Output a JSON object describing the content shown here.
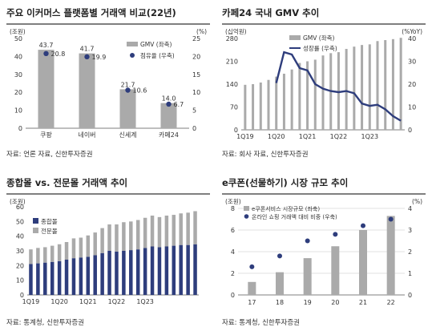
{
  "panels": [
    {
      "title": "주요 이커머스 플랫폼별 거래액 비교(22년)",
      "source": "자료: 언론 자료, 신한투자증권"
    },
    {
      "title": "카페24 국내 GMV 추이",
      "source": "자료: 회사 자료, 신한투자증권"
    },
    {
      "title": "종합몰 vs. 전문몰 거래액 추이",
      "source": "자료: 통계청, 신한투자증권"
    },
    {
      "title": "e쿠폰(선물하기) 시장 규모 추이",
      "source": "자료: 통계청, 신한투자증권"
    }
  ],
  "colors": {
    "bar_gray": "#aaaaaa",
    "navy": "#2e3d7c",
    "grid": "#d9d9d9"
  },
  "chart_data": [
    {
      "type": "bar",
      "categories": [
        "쿠팡",
        "네이버",
        "신세계",
        "카페24"
      ],
      "series": [
        {
          "name": "GMV (좌축)",
          "axis": "left",
          "values": [
            43.7,
            41.7,
            21.7,
            14.0
          ],
          "labels": [
            "43.7",
            "41.7",
            "21.7",
            "14.0"
          ]
        },
        {
          "name": "점유율 (우축)",
          "axis": "right",
          "values": [
            20.8,
            19.9,
            10.6,
            6.7
          ],
          "labels": [
            "20.8",
            "19.9",
            "10.6",
            "6.7"
          ]
        }
      ],
      "left_unit": "(조원)",
      "right_unit": "(%)",
      "ylim": [
        0,
        50
      ],
      "y2lim": [
        0,
        25
      ],
      "yticks": [
        0,
        10,
        20,
        30,
        40,
        50
      ],
      "y2ticks": [
        0,
        5,
        10,
        15,
        20,
        25
      ],
      "grid": false,
      "legend": "top-right"
    },
    {
      "type": "bar",
      "x_labels": [
        "1Q19",
        "1Q20",
        "1Q21",
        "1Q22",
        "1Q23"
      ],
      "series": [
        {
          "name": "GMV (좌축)",
          "axis": "left",
          "values": [
            138,
            140,
            145,
            153,
            163,
            172,
            185,
            205,
            210,
            215,
            228,
            235,
            238,
            248,
            255,
            260,
            262,
            272,
            275,
            278,
            282
          ]
        },
        {
          "name": "성장률 (우축)",
          "axis": "right",
          "values": [
            null,
            null,
            null,
            null,
            20.5,
            34,
            33,
            27,
            26,
            20,
            18,
            17,
            16.5,
            17,
            16,
            11.5,
            10.5,
            11,
            9,
            6,
            4
          ]
        }
      ],
      "left_unit": "(십억원)",
      "right_unit": "(%YoY)",
      "ylim": [
        0,
        280
      ],
      "y2lim": [
        0,
        40
      ],
      "yticks": [
        0,
        70,
        140,
        210,
        280
      ],
      "y2ticks": [
        0,
        10,
        20,
        30,
        40
      ],
      "grid": false,
      "legend": "top-center"
    },
    {
      "type": "bar",
      "x_labels": [
        "1Q19",
        "1Q20",
        "1Q21",
        "1Q22",
        "1Q23"
      ],
      "series": [
        {
          "name": "종합몰",
          "values": [
            21,
            21.5,
            22,
            22.5,
            23,
            24,
            25,
            25.5,
            26,
            27,
            28.5,
            30,
            29.5,
            30,
            30.5,
            31,
            32,
            33,
            32.5,
            33,
            33.5,
            34,
            34,
            34.5
          ]
        },
        {
          "name": "전문몰",
          "values": [
            10,
            10.5,
            10.5,
            11,
            11.5,
            12,
            13.5,
            13.5,
            14.5,
            15.5,
            17,
            18,
            18.5,
            19.5,
            19.5,
            20,
            20.5,
            21,
            20.5,
            21,
            21,
            21.5,
            22,
            22.5
          ]
        }
      ],
      "unit": "(조원)",
      "ylim": [
        0,
        60
      ],
      "yticks": [
        0,
        10,
        20,
        30,
        40,
        50,
        60
      ],
      "stacked": true,
      "grid": false,
      "legend": "top-left"
    },
    {
      "type": "bar",
      "categories": [
        "17",
        "18",
        "19",
        "20",
        "21",
        "22"
      ],
      "series": [
        {
          "name": "e쿠폰서비스 시장규모 (좌축)",
          "axis": "left",
          "values": [
            1.2,
            2.1,
            3.4,
            4.5,
            6.0,
            7.3
          ]
        },
        {
          "name": "온라인 쇼핑 거래액 대비 비중 (우축)",
          "axis": "right",
          "values": [
            1.3,
            1.8,
            2.5,
            2.8,
            3.2,
            3.5
          ]
        }
      ],
      "left_unit": "(조원)",
      "right_unit": "(%)",
      "ylim": [
        0,
        8
      ],
      "y2lim": [
        0,
        4
      ],
      "yticks": [
        0,
        2,
        4,
        6,
        8
      ],
      "y2ticks": [
        0,
        1,
        2,
        3,
        4
      ],
      "grid": true,
      "legend": "top-left"
    }
  ]
}
